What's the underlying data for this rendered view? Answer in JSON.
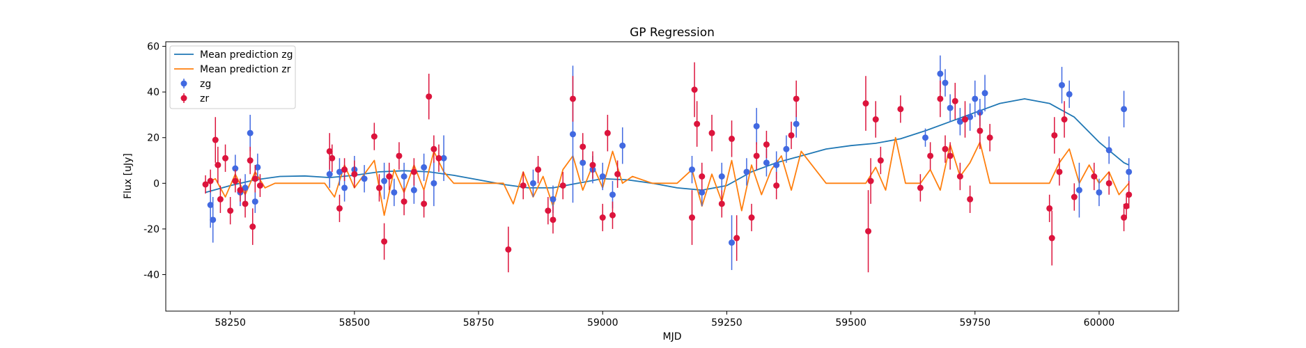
{
  "chart_data": {
    "type": "scatter",
    "title": "GP Regression",
    "xlabel": "MJD",
    "ylabel": "Flux [uJy]",
    "xlim": [
      58120,
      60160
    ],
    "ylim": [
      -56,
      62
    ],
    "x_ticks": [
      58250,
      58500,
      58750,
      59000,
      59250,
      59500,
      59750,
      60000
    ],
    "y_ticks": [
      -40,
      -20,
      0,
      20,
      40,
      60
    ],
    "grid": false,
    "legend_position": "top-left",
    "series": [
      {
        "name": "Mean prediction zg",
        "kind": "line",
        "color": "#1f77b4",
        "x": [
          58200,
          58250,
          58300,
          58350,
          58400,
          58450,
          58500,
          58550,
          58600,
          58650,
          58700,
          58750,
          58800,
          58850,
          58900,
          58950,
          59000,
          59050,
          59100,
          59150,
          59200,
          59250,
          59300,
          59350,
          59400,
          59450,
          59500,
          59550,
          59600,
          59650,
          59700,
          59750,
          59800,
          59850,
          59900,
          59950,
          60000,
          60050,
          60060
        ],
        "y": [
          -4,
          -1,
          1.5,
          3,
          3.2,
          2.5,
          3.5,
          5,
          5.5,
          5,
          3.5,
          1.5,
          -0.5,
          -2,
          -2,
          0,
          2,
          1.5,
          0,
          -2,
          -3,
          -1,
          5,
          9,
          12,
          15,
          16.5,
          17.5,
          19.5,
          23,
          27,
          31,
          35,
          37,
          35,
          29,
          18,
          9,
          8
        ]
      },
      {
        "name": "Mean prediction zr",
        "kind": "line",
        "color": "#ff7f0e",
        "x": [
          58200,
          58220,
          58240,
          58260,
          58280,
          58300,
          58320,
          58340,
          58400,
          58440,
          58460,
          58480,
          58500,
          58520,
          58540,
          58560,
          58580,
          58600,
          58620,
          58640,
          58660,
          58680,
          58700,
          58750,
          58800,
          58820,
          58840,
          58860,
          58880,
          58900,
          58920,
          58940,
          58960,
          58980,
          59000,
          59020,
          59040,
          59060,
          59100,
          59150,
          59180,
          59200,
          59220,
          59240,
          59260,
          59280,
          59300,
          59320,
          59340,
          59360,
          59380,
          59400,
          59450,
          59500,
          59530,
          59550,
          59570,
          59590,
          59610,
          59640,
          59660,
          59680,
          59700,
          59720,
          59740,
          59760,
          59780,
          59800,
          59850,
          59900,
          59920,
          59940,
          59960,
          59980,
          60000,
          60020,
          60040,
          60060
        ],
        "y": [
          0,
          2,
          -6,
          4,
          -5,
          5,
          -2,
          0,
          0,
          0,
          -6,
          8,
          -2,
          4,
          10,
          -14,
          6,
          -4,
          8,
          -3,
          14,
          5,
          0,
          0,
          0,
          -9,
          5,
          -6,
          3,
          -10,
          6,
          12,
          -3,
          8,
          -2,
          14,
          0,
          3,
          0,
          0,
          6,
          -10,
          4,
          -8,
          10,
          -12,
          8,
          -5,
          6,
          12,
          -3,
          14,
          0,
          0,
          0,
          7,
          -3,
          20,
          0,
          0,
          6,
          -3,
          17,
          3,
          9,
          18,
          0,
          0,
          0,
          0,
          9,
          15,
          0,
          8,
          0,
          5,
          -5,
          0
        ]
      },
      {
        "name": "zg",
        "kind": "errorbar",
        "color": "#4169e1",
        "x": [
          58210,
          58215,
          58260,
          58270,
          58280,
          58290,
          58300,
          58305,
          58450,
          58470,
          58480,
          58500,
          58520,
          58560,
          58580,
          58600,
          58620,
          58640,
          58660,
          58680,
          58860,
          58900,
          58940,
          58960,
          58980,
          59000,
          59020,
          59040,
          59180,
          59200,
          59240,
          59260,
          59290,
          59310,
          59330,
          59350,
          59370,
          59390,
          59650,
          59680,
          59690,
          59700,
          59720,
          59740,
          59750,
          59760,
          59770,
          59925,
          59940,
          59960,
          60000,
          60020,
          60050,
          60060
        ],
        "y": [
          -9.5,
          -16,
          6.5,
          -4,
          -2,
          22,
          -8,
          7,
          4,
          5,
          -2,
          6,
          2,
          1,
          -4,
          3,
          -3,
          7,
          0,
          11,
          0,
          -7,
          21.5,
          9,
          6,
          3,
          -5,
          16.5,
          6,
          -4,
          3,
          -26,
          5,
          25,
          9,
          8,
          15,
          26,
          20,
          48,
          44,
          33,
          27,
          29,
          37,
          31,
          39.5,
          43,
          39,
          -3,
          -4,
          14.5,
          32.5,
          5
        ],
        "err": [
          10,
          10,
          6,
          6,
          6,
          8,
          5,
          6,
          6,
          6,
          6,
          6,
          6,
          8,
          6,
          6,
          6,
          6,
          10,
          10,
          6,
          6,
          30,
          8,
          6,
          6,
          6,
          8,
          6,
          6,
          6,
          12,
          6,
          8,
          6,
          6,
          6,
          6,
          4,
          8,
          6,
          6,
          6,
          6,
          8,
          6,
          8,
          8,
          6,
          12,
          6,
          6,
          8,
          6
        ]
      },
      {
        "name": "zr",
        "kind": "errorbar",
        "color": "#dc143c",
        "x": [
          58200,
          58210,
          58220,
          58225,
          58230,
          58240,
          58250,
          58260,
          58270,
          58280,
          58290,
          58295,
          58300,
          58310,
          58450,
          58455,
          58470,
          58480,
          58500,
          58540,
          58550,
          58560,
          58570,
          58590,
          58600,
          58620,
          58640,
          58650,
          58660,
          58670,
          58810,
          58840,
          58870,
          58890,
          58900,
          58920,
          58940,
          58960,
          58980,
          59000,
          59010,
          59020,
          59030,
          59180,
          59185,
          59190,
          59200,
          59220,
          59240,
          59260,
          59270,
          59300,
          59310,
          59330,
          59350,
          59380,
          59390,
          59530,
          59535,
          59540,
          59550,
          59560,
          59600,
          59640,
          59660,
          59680,
          59690,
          59700,
          59710,
          59720,
          59730,
          59740,
          59760,
          59780,
          59900,
          59905,
          59910,
          59920,
          59930,
          59950,
          59990,
          60020,
          60050,
          60055,
          60060
        ],
        "y": [
          -0.5,
          1,
          19,
          8,
          -7,
          11,
          -12,
          1,
          -3,
          -9,
          10,
          -19,
          2,
          -1,
          14,
          11,
          -11,
          6,
          4,
          20.5,
          -2,
          -25.5,
          3,
          12,
          -8,
          5,
          -9,
          38,
          15,
          11,
          -29,
          -1,
          6,
          -12,
          -16,
          -1,
          37,
          16,
          8,
          -15,
          22,
          -14,
          4,
          -15,
          41,
          26,
          3,
          22,
          -9,
          19.5,
          -24,
          -15,
          12,
          17,
          -1,
          21,
          37,
          35,
          -21,
          1,
          28,
          10,
          32.5,
          -2,
          12,
          37,
          15,
          12,
          36,
          3,
          28,
          -7,
          23,
          20,
          -11,
          -24,
          21,
          5,
          28,
          -6,
          3,
          0,
          -15,
          -10,
          -5
        ],
        "err": [
          4,
          5,
          10,
          8,
          6,
          6,
          6,
          5,
          5,
          6,
          6,
          8,
          6,
          5,
          8,
          6,
          6,
          5,
          6,
          6,
          6,
          8,
          6,
          6,
          6,
          6,
          6,
          10,
          6,
          6,
          10,
          6,
          6,
          6,
          6,
          6,
          10,
          6,
          6,
          6,
          8,
          6,
          6,
          12,
          12,
          10,
          6,
          8,
          6,
          8,
          10,
          6,
          6,
          6,
          6,
          6,
          8,
          12,
          18,
          10,
          8,
          6,
          6,
          6,
          6,
          8,
          6,
          6,
          8,
          6,
          8,
          6,
          8,
          6,
          6,
          12,
          8,
          6,
          8,
          6,
          6,
          5,
          6,
          5,
          6
        ]
      }
    ]
  }
}
